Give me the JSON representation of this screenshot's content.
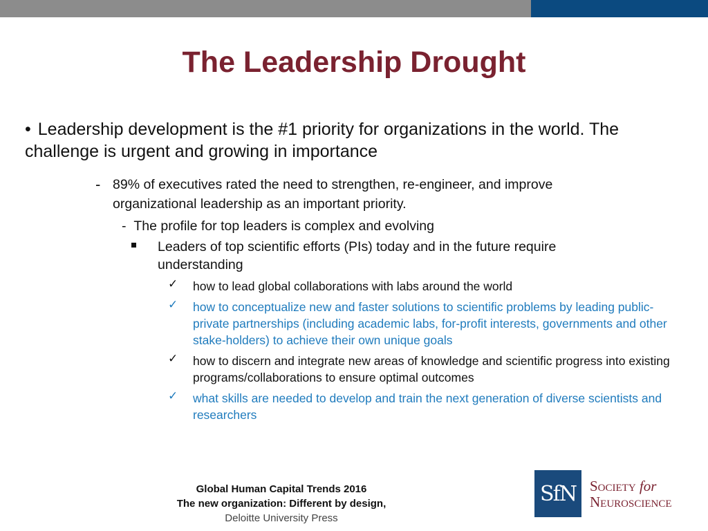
{
  "slide": {
    "title": "The Leadership Drought",
    "colors": {
      "title": "#7a2230",
      "accent_blue": "#1f7bbd",
      "top_bar_gray": "#8c8c8c",
      "top_bar_blue": "#0b4a80"
    }
  },
  "content": {
    "level1": {
      "bullet": "•",
      "text": "Leadership development is the #1 priority for organizations in the world. The challenge is urgent and growing in importance"
    },
    "level2": {
      "marker": "-",
      "text": "89% of executives rated the need to strengthen, re-engineer, and improve organizational leadership as an important priority."
    },
    "level3": {
      "marker": "-",
      "text": "The profile for top leaders is complex and evolving"
    },
    "level4": {
      "text": "Leaders of top scientific efforts (PIs) today and in the future require understanding"
    },
    "checks": [
      {
        "mark": "✓",
        "text": "how to lead global collaborations with labs around the world",
        "color": "dark"
      },
      {
        "mark": "✓",
        "text": "how to conceptualize new and faster solutions to scientific problems by leading public-private partnerships (including academic labs, for-profit interests, governments and other stake-holders) to achieve their own unique goals",
        "color": "blue"
      },
      {
        "mark": "✓",
        "text": "how to discern and integrate new areas of knowledge and scientific progress into existing programs/collaborations to ensure optimal outcomes",
        "color": "dark"
      },
      {
        "mark": "✓",
        "text": "what skills are needed to develop and train the next generation of diverse scientists and researchers",
        "color": "blue"
      }
    ]
  },
  "source": {
    "line1": "Global Human Capital Trends 2016",
    "line2": "The new organization: Different by design",
    "line2_suffix": ",",
    "line3": "Deloitte University Press"
  },
  "logo": {
    "mark": "SfN",
    "line1_a": "Society",
    "line1_b": "for",
    "line2": "Neuroscience"
  }
}
